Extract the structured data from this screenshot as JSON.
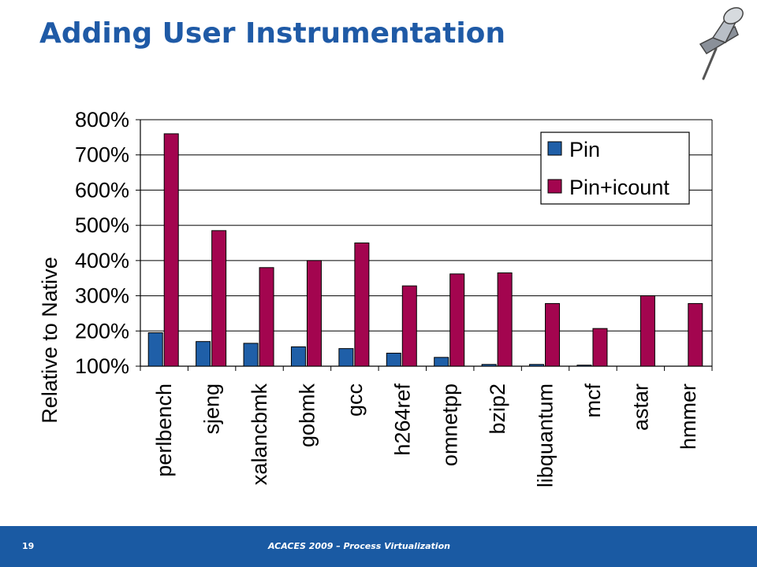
{
  "slide": {
    "title": "Adding User Instrumentation",
    "page_number": "19",
    "footer_text": "ACACES 2009 – Process Virtualization"
  },
  "icons": {
    "pushpin": "pushpin-icon"
  },
  "chart_data": {
    "type": "bar",
    "ylabel": "Relative to Native",
    "xlabel": "",
    "ylim": [
      100,
      800
    ],
    "yticks": [
      100,
      200,
      300,
      400,
      500,
      600,
      700,
      800
    ],
    "ytick_labels": [
      "100%",
      "200%",
      "300%",
      "400%",
      "500%",
      "600%",
      "700%",
      "800%"
    ],
    "grid": true,
    "legend_position": "top-right",
    "categories": [
      "perlbench",
      "sjeng",
      "xalancbmk",
      "gobmk",
      "gcc",
      "h264ref",
      "omnetpp",
      "bzip2",
      "libquantum",
      "mcf",
      "astar",
      "hmmer"
    ],
    "series": [
      {
        "name": "Pin",
        "color": "#1f5fa8",
        "values": [
          195,
          170,
          165,
          155,
          150,
          137,
          125,
          105,
          105,
          103,
          100,
          100
        ]
      },
      {
        "name": "Pin+icount",
        "color": "#a3054f",
        "values": [
          760,
          485,
          380,
          400,
          450,
          328,
          362,
          365,
          278,
          207,
          300,
          278
        ]
      }
    ]
  }
}
